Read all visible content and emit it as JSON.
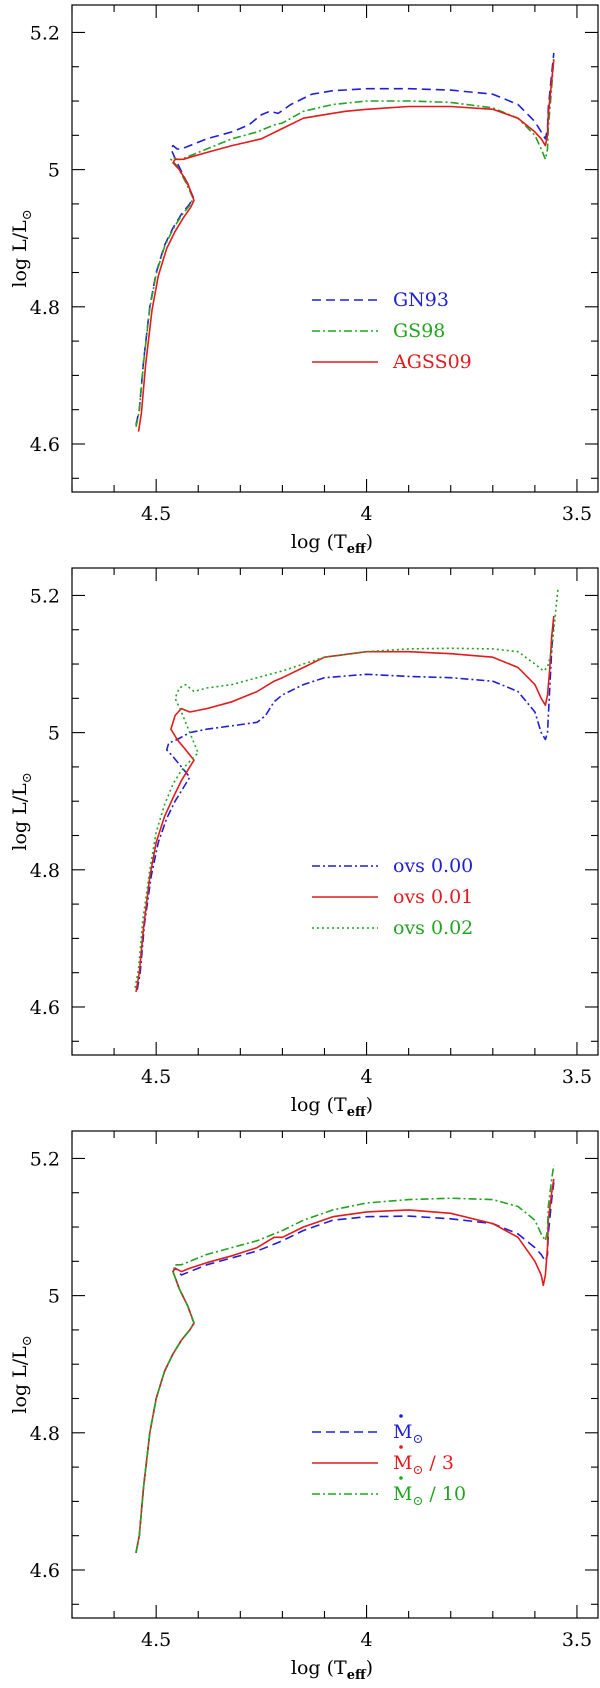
{
  "colors": {
    "blue": "#1f1fd6",
    "green": "#22a322",
    "red": "#e41a1c"
  },
  "chart_data": [
    {
      "type": "line",
      "xlabel": "log (T",
      "xlabel_sub": "eff",
      "xlabel_close": ")",
      "ylabel": "log L/L",
      "ylabel_sub": "⊙",
      "xlim": [
        4.7,
        3.45
      ],
      "ylim": [
        4.53,
        5.24
      ],
      "xticks": [
        "4.5",
        "4",
        "3.5"
      ],
      "yticks": [
        "4.6",
        "4.8",
        "5",
        "5.2"
      ],
      "series": [
        {
          "name": "GN93",
          "label": "GN93",
          "color": "#1f1fd6",
          "dash": "9,5",
          "x": [
            4.548,
            4.54,
            4.53,
            4.515,
            4.5,
            4.48,
            4.46,
            4.44,
            4.42,
            4.412,
            4.43,
            4.45,
            4.465,
            4.46,
            4.45,
            4.44,
            4.42,
            4.38,
            4.32,
            4.28,
            4.25,
            4.23,
            4.21,
            4.18,
            4.13,
            4.08,
            4.0,
            3.9,
            3.8,
            3.7,
            3.64,
            3.6,
            3.585,
            3.575,
            3.57,
            3.568,
            3.56,
            3.555
          ],
          "y": [
            4.628,
            4.65,
            4.72,
            4.8,
            4.85,
            4.89,
            4.915,
            4.935,
            4.95,
            4.96,
            4.985,
            5.01,
            5.03,
            5.035,
            5.03,
            5.03,
            5.035,
            5.045,
            5.055,
            5.065,
            5.08,
            5.085,
            5.082,
            5.095,
            5.11,
            5.115,
            5.118,
            5.118,
            5.116,
            5.11,
            5.095,
            5.07,
            5.055,
            5.045,
            5.06,
            5.09,
            5.14,
            5.17
          ]
        },
        {
          "name": "GS98",
          "label": "GS98",
          "color": "#22a322",
          "dash": "8,3,2,3",
          "x": [
            4.548,
            4.54,
            4.53,
            4.515,
            4.5,
            4.48,
            4.46,
            4.44,
            4.42,
            4.412,
            4.43,
            4.45,
            4.465,
            4.46,
            4.45,
            4.44,
            4.42,
            4.38,
            4.32,
            4.26,
            4.22,
            4.2,
            4.15,
            4.08,
            4.0,
            3.9,
            3.8,
            3.7,
            3.64,
            3.6,
            3.585,
            3.575,
            3.57,
            3.568,
            3.56,
            3.555
          ],
          "y": [
            4.625,
            4.648,
            4.718,
            4.798,
            4.848,
            4.888,
            4.913,
            4.933,
            4.948,
            4.958,
            4.982,
            5.005,
            5.015,
            5.018,
            5.015,
            5.015,
            5.02,
            5.03,
            5.045,
            5.055,
            5.065,
            5.068,
            5.085,
            5.095,
            5.1,
            5.1,
            5.098,
            5.09,
            5.075,
            5.05,
            5.03,
            5.015,
            5.03,
            5.06,
            5.12,
            5.165
          ]
        },
        {
          "name": "AGSS09",
          "label": "AGSS09",
          "color": "#e41a1c",
          "dash": "",
          "x": [
            4.542,
            4.535,
            4.525,
            4.51,
            4.495,
            4.475,
            4.455,
            4.435,
            4.418,
            4.41,
            4.425,
            4.445,
            4.46,
            4.455,
            4.445,
            4.435,
            4.42,
            4.38,
            4.32,
            4.25,
            4.2,
            4.15,
            4.1,
            4.05,
            4.0,
            3.9,
            3.8,
            3.7,
            3.64,
            3.6,
            3.585,
            3.575,
            3.57,
            3.568,
            3.56,
            3.555
          ],
          "y": [
            4.618,
            4.645,
            4.715,
            4.795,
            4.845,
            4.885,
            4.91,
            4.93,
            4.945,
            4.955,
            4.98,
            5.0,
            5.01,
            5.015,
            5.015,
            5.015,
            5.018,
            5.025,
            5.035,
            5.045,
            5.06,
            5.075,
            5.08,
            5.085,
            5.088,
            5.092,
            5.092,
            5.088,
            5.075,
            5.055,
            5.045,
            5.035,
            5.05,
            5.08,
            5.13,
            5.16
          ]
        }
      ]
    },
    {
      "type": "line",
      "xlabel": "log (T",
      "xlabel_sub": "eff",
      "xlabel_close": ")",
      "ylabel": "log L/L",
      "ylabel_sub": "⊙",
      "xlim": [
        4.7,
        3.45
      ],
      "ylim": [
        4.53,
        5.24
      ],
      "xticks": [
        "4.5",
        "4",
        "3.5"
      ],
      "yticks": [
        "4.6",
        "4.8",
        "5",
        "5.2"
      ],
      "series": [
        {
          "name": "ovs 0.00",
          "label": "ovs 0.00",
          "color": "#1f1fd6",
          "dash": "8,3,2,3",
          "x": [
            4.545,
            4.538,
            4.528,
            4.512,
            4.495,
            4.475,
            4.455,
            4.435,
            4.42,
            4.44,
            4.46,
            4.475,
            4.47,
            4.45,
            4.42,
            4.38,
            4.32,
            4.26,
            4.24,
            4.22,
            4.2,
            4.15,
            4.1,
            4.0,
            3.9,
            3.8,
            3.7,
            3.64,
            3.6,
            3.585,
            3.575,
            3.57,
            3.565,
            3.56,
            3.555
          ],
          "y": [
            4.625,
            4.65,
            4.72,
            4.79,
            4.84,
            4.875,
            4.9,
            4.92,
            4.935,
            4.95,
            4.965,
            4.975,
            4.985,
            4.99,
            5.0,
            5.005,
            5.01,
            5.015,
            5.025,
            5.045,
            5.055,
            5.07,
            5.08,
            5.085,
            5.082,
            5.08,
            5.075,
            5.06,
            5.03,
            5.0,
            4.99,
            5.0,
            5.06,
            5.12,
            5.165
          ]
        },
        {
          "name": "ovs 0.01",
          "label": "ovs 0.01",
          "color": "#e41a1c",
          "dash": "",
          "x": [
            4.548,
            4.54,
            4.53,
            4.515,
            4.5,
            4.48,
            4.46,
            4.44,
            4.42,
            4.41,
            4.43,
            4.45,
            4.465,
            4.455,
            4.44,
            4.42,
            4.38,
            4.32,
            4.26,
            4.22,
            4.2,
            4.15,
            4.1,
            4.0,
            3.9,
            3.8,
            3.7,
            3.64,
            3.6,
            3.585,
            3.575,
            3.57,
            3.565,
            3.56,
            3.555
          ],
          "y": [
            4.622,
            4.65,
            4.715,
            4.79,
            4.84,
            4.878,
            4.905,
            4.93,
            4.95,
            4.96,
            4.975,
            4.99,
            5.005,
            5.025,
            5.035,
            5.03,
            5.035,
            5.045,
            5.06,
            5.075,
            5.08,
            5.095,
            5.11,
            5.118,
            5.118,
            5.115,
            5.11,
            5.095,
            5.07,
            5.05,
            5.04,
            5.055,
            5.09,
            5.14,
            5.17
          ]
        },
        {
          "name": "ovs 0.02",
          "label": "ovs 0.02",
          "color": "#22a322",
          "dash": "2,3",
          "x": [
            4.55,
            4.542,
            4.532,
            4.515,
            4.5,
            4.48,
            4.46,
            4.44,
            4.425,
            4.41,
            4.4,
            4.42,
            4.44,
            4.455,
            4.445,
            4.43,
            4.41,
            4.38,
            4.32,
            4.26,
            4.2,
            4.15,
            4.1,
            4.0,
            3.9,
            3.8,
            3.7,
            3.64,
            3.6,
            3.58,
            3.57,
            3.56,
            3.555,
            3.55,
            3.545
          ],
          "y": [
            4.628,
            4.655,
            4.725,
            4.8,
            4.855,
            4.895,
            4.925,
            4.945,
            4.955,
            4.965,
            4.97,
            5.0,
            5.03,
            5.05,
            5.065,
            5.07,
            5.06,
            5.065,
            5.07,
            5.08,
            5.09,
            5.1,
            5.11,
            5.118,
            5.122,
            5.123,
            5.122,
            5.118,
            5.1,
            5.09,
            5.095,
            5.12,
            5.15,
            5.18,
            5.21
          ]
        }
      ]
    },
    {
      "type": "line",
      "xlabel": "log (T",
      "xlabel_sub": "eff",
      "xlabel_close": ")",
      "ylabel": "log L/L",
      "ylabel_sub": "⊙",
      "xlim": [
        4.7,
        3.45
      ],
      "ylim": [
        4.53,
        5.24
      ],
      "xticks": [
        "4.5",
        "4",
        "3.5"
      ],
      "yticks": [
        "4.6",
        "4.8",
        "5",
        "5.2"
      ],
      "series": [
        {
          "name": "Mdot_sun",
          "label": "M",
          "label_suffix": "",
          "color": "#1f1fd6",
          "dash": "9,5",
          "x": [
            4.548,
            4.54,
            4.53,
            4.515,
            4.5,
            4.48,
            4.46,
            4.44,
            4.42,
            4.41,
            4.425,
            4.445,
            4.46,
            4.455,
            4.44,
            4.42,
            4.38,
            4.32,
            4.26,
            4.22,
            4.2,
            4.15,
            4.08,
            4.0,
            3.9,
            3.8,
            3.7,
            3.64,
            3.6,
            3.585,
            3.575,
            3.57,
            3.568,
            3.56,
            3.555
          ],
          "y": [
            4.625,
            4.65,
            4.72,
            4.8,
            4.85,
            4.89,
            4.915,
            4.935,
            4.95,
            4.96,
            4.985,
            5.01,
            5.035,
            5.04,
            5.03,
            5.035,
            5.045,
            5.055,
            5.065,
            5.075,
            5.08,
            5.095,
            5.11,
            5.115,
            5.116,
            5.112,
            5.105,
            5.09,
            5.07,
            5.06,
            5.05,
            5.06,
            5.09,
            5.14,
            5.165
          ]
        },
        {
          "name": "Mdot_sun/3",
          "label": "M",
          "label_suffix": " / 3",
          "color": "#e41a1c",
          "dash": "",
          "x": [
            4.548,
            4.54,
            4.53,
            4.515,
            4.5,
            4.48,
            4.46,
            4.44,
            4.42,
            4.41,
            4.425,
            4.445,
            4.46,
            4.455,
            4.44,
            4.42,
            4.38,
            4.32,
            4.26,
            4.22,
            4.2,
            4.15,
            4.08,
            4.0,
            3.9,
            3.8,
            3.7,
            3.64,
            3.6,
            3.585,
            3.58,
            3.575,
            3.57,
            3.568,
            3.56,
            3.555
          ],
          "y": [
            4.625,
            4.65,
            4.72,
            4.8,
            4.85,
            4.89,
            4.915,
            4.935,
            4.95,
            4.96,
            4.985,
            5.01,
            5.035,
            5.04,
            5.035,
            5.04,
            5.048,
            5.058,
            5.07,
            5.085,
            5.085,
            5.1,
            5.115,
            5.122,
            5.125,
            5.12,
            5.105,
            5.085,
            5.05,
            5.03,
            5.015,
            5.03,
            5.07,
            5.11,
            5.15,
            5.17
          ]
        },
        {
          "name": "Mdot_sun/10",
          "label": "M",
          "label_suffix": " / 10",
          "color": "#22a322",
          "dash": "8,3,2,3",
          "x": [
            4.548,
            4.54,
            4.53,
            4.515,
            4.5,
            4.48,
            4.46,
            4.44,
            4.42,
            4.41,
            4.425,
            4.445,
            4.46,
            4.455,
            4.44,
            4.42,
            4.38,
            4.32,
            4.26,
            4.22,
            4.2,
            4.15,
            4.08,
            4.0,
            3.9,
            3.8,
            3.7,
            3.64,
            3.6,
            3.585,
            3.575,
            3.57,
            3.568,
            3.56,
            3.555
          ],
          "y": [
            4.625,
            4.65,
            4.72,
            4.8,
            4.85,
            4.89,
            4.915,
            4.935,
            4.95,
            4.96,
            4.985,
            5.01,
            5.035,
            5.045,
            5.045,
            5.05,
            5.06,
            5.07,
            5.08,
            5.09,
            5.095,
            5.11,
            5.125,
            5.135,
            5.14,
            5.142,
            5.14,
            5.13,
            5.11,
            5.09,
            5.08,
            5.095,
            5.13,
            5.17,
            5.19
          ]
        }
      ]
    }
  ]
}
